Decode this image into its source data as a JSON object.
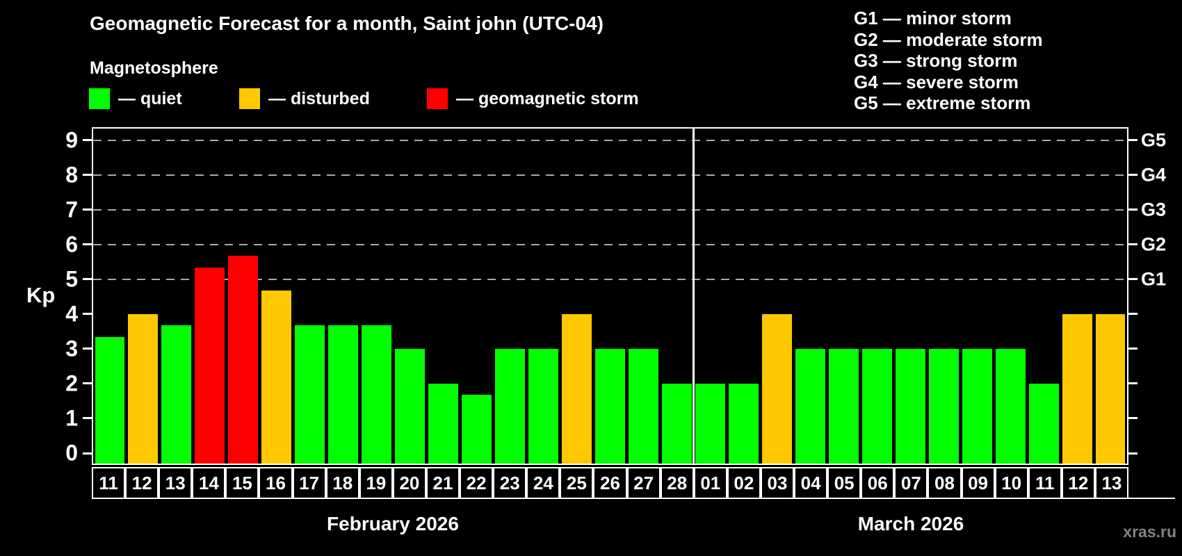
{
  "header": {
    "title": "Geomagnetic Forecast for a month, Saint john (UTC-04)",
    "subtitle": "Magnetosphere"
  },
  "legend": {
    "items": [
      {
        "key": "quiet",
        "label": "— quiet",
        "color": "#00ff00"
      },
      {
        "key": "disturbed",
        "label": "— disturbed",
        "color": "#ffc800"
      },
      {
        "key": "storm",
        "label": "— geomagnetic storm",
        "color": "#ff0000"
      }
    ]
  },
  "g_scale_legend": {
    "items": [
      {
        "level": "G1",
        "label": "G1 — minor storm"
      },
      {
        "level": "G2",
        "label": "G2 — moderate storm"
      },
      {
        "level": "G3",
        "label": "G3 — strong storm"
      },
      {
        "level": "G4",
        "label": "G4 — severe storm"
      },
      {
        "level": "G5",
        "label": "G5 — extreme storm"
      }
    ]
  },
  "chart_data": {
    "type": "bar",
    "title": "Geomagnetic Forecast for a month, Saint john (UTC-04)",
    "ylabel": "Kp",
    "ylim": [
      0,
      9.4
    ],
    "grid": true,
    "legend_position": "top",
    "y_ticks": [
      0,
      1,
      2,
      3,
      4,
      5,
      6,
      7,
      8,
      9
    ],
    "gridlines_kp": [
      5,
      6,
      7,
      8,
      9
    ],
    "right_axis_labels": [
      {
        "label": "G1",
        "kp": 5
      },
      {
        "label": "G2",
        "kp": 6
      },
      {
        "label": "G3",
        "kp": 7
      },
      {
        "label": "G4",
        "kp": 8
      },
      {
        "label": "G5",
        "kp": 9
      }
    ],
    "months": [
      {
        "label": "February 2026",
        "start_index": 0,
        "days": 18
      },
      {
        "label": "March 2026",
        "start_index": 18,
        "days": 13
      }
    ],
    "categories": [
      "11",
      "12",
      "13",
      "14",
      "15",
      "16",
      "17",
      "18",
      "19",
      "20",
      "21",
      "22",
      "23",
      "24",
      "25",
      "26",
      "27",
      "28",
      "01",
      "02",
      "03",
      "04",
      "05",
      "06",
      "07",
      "08",
      "09",
      "10",
      "11",
      "12",
      "13"
    ],
    "values": [
      3.33,
      4,
      3.67,
      5.33,
      5.67,
      4.67,
      3.67,
      3.67,
      3.67,
      3,
      2,
      1.67,
      3,
      3,
      4,
      3,
      3,
      2,
      2,
      2,
      4,
      3,
      3,
      3,
      3,
      3,
      3,
      3,
      2,
      4,
      4
    ],
    "statuses": [
      "quiet",
      "disturbed",
      "quiet",
      "storm",
      "storm",
      "disturbed",
      "quiet",
      "quiet",
      "quiet",
      "quiet",
      "quiet",
      "quiet",
      "quiet",
      "quiet",
      "disturbed",
      "quiet",
      "quiet",
      "quiet",
      "quiet",
      "quiet",
      "disturbed",
      "quiet",
      "quiet",
      "quiet",
      "quiet",
      "quiet",
      "quiet",
      "quiet",
      "quiet",
      "disturbed",
      "disturbed"
    ]
  },
  "watermark": "xras.ru",
  "colors": {
    "background": "#000000",
    "axis": "#ffffff",
    "grid": "#aaaaaa",
    "text": "#ffffff",
    "watermark": "#828282"
  }
}
